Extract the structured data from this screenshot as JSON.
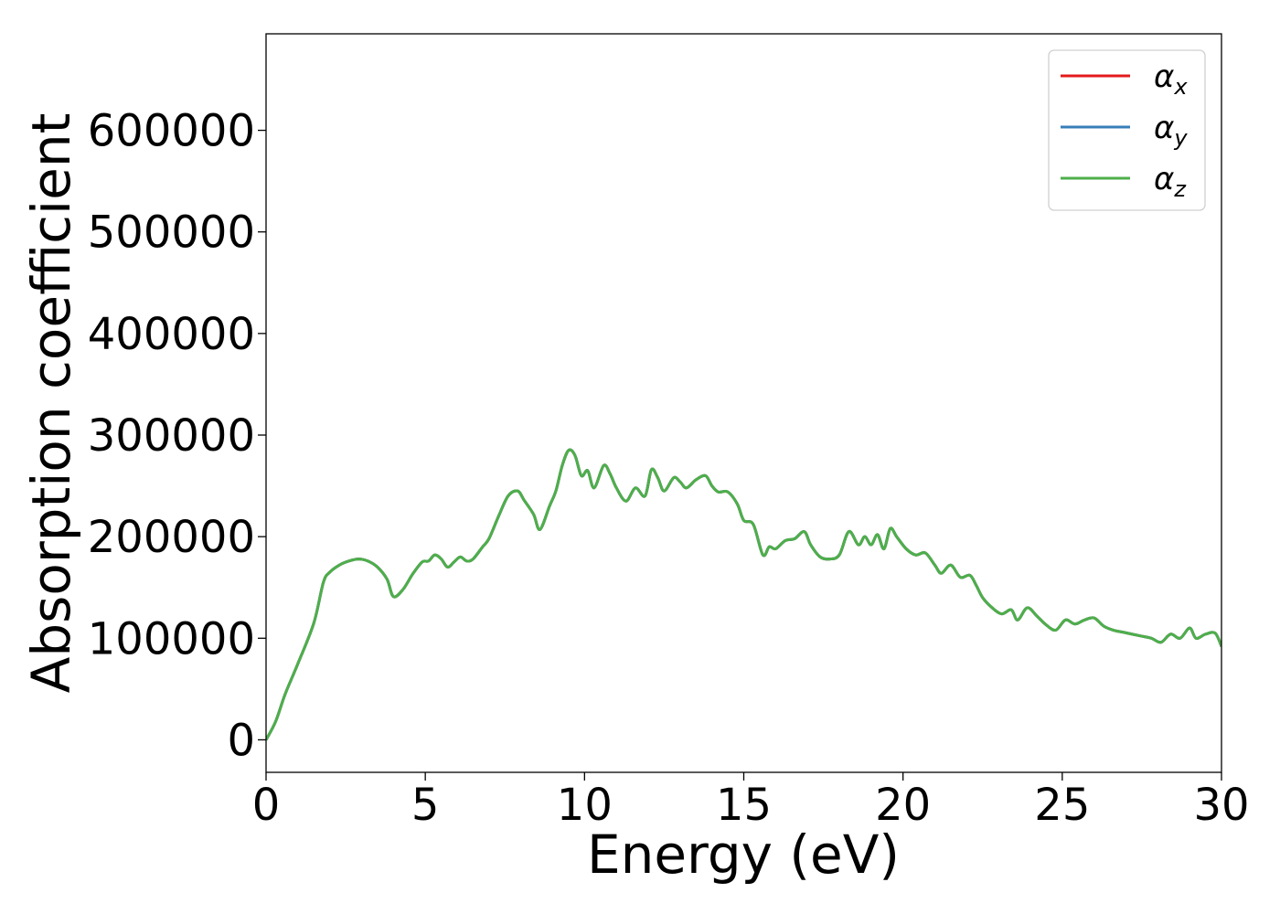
{
  "chart_data": {
    "type": "line",
    "xlabel": "Energy (eV)",
    "ylabel": "Absorption coefficient",
    "xlim": [
      0,
      30
    ],
    "ylim": [
      -32000,
      695000
    ],
    "xticks": [
      "0",
      "5",
      "10",
      "15",
      "20",
      "25",
      "30"
    ],
    "yticks": [
      "0",
      "100000",
      "200000",
      "300000",
      "400000",
      "500000",
      "600000"
    ],
    "grid": false,
    "legend_position": "top-right",
    "x": [
      0,
      0.3,
      0.6,
      1.0,
      1.5,
      1.8,
      2.0,
      2.3,
      2.6,
      2.9,
      3.2,
      3.5,
      3.8,
      4.0,
      4.3,
      4.6,
      4.9,
      5.1,
      5.3,
      5.5,
      5.7,
      5.9,
      6.1,
      6.3,
      6.5,
      6.8,
      7.0,
      7.3,
      7.6,
      7.9,
      8.1,
      8.4,
      8.6,
      8.9,
      9.1,
      9.3,
      9.5,
      9.7,
      9.9,
      10.1,
      10.3,
      10.6,
      10.8,
      11.0,
      11.3,
      11.6,
      11.9,
      12.1,
      12.3,
      12.5,
      12.8,
      13.0,
      13.2,
      13.5,
      13.8,
      14.0,
      14.2,
      14.5,
      14.8,
      15.0,
      15.3,
      15.6,
      15.8,
      16.0,
      16.3,
      16.6,
      16.9,
      17.1,
      17.4,
      17.7,
      18.0,
      18.3,
      18.6,
      18.8,
      19.0,
      19.2,
      19.4,
      19.6,
      19.8,
      20.1,
      20.4,
      20.7,
      21.0,
      21.2,
      21.5,
      21.8,
      22.1,
      22.3,
      22.5,
      22.8,
      23.1,
      23.4,
      23.6,
      23.9,
      24.2,
      24.5,
      24.8,
      25.1,
      25.4,
      25.7,
      26.0,
      26.3,
      26.6,
      26.9,
      27.2,
      27.5,
      27.8,
      28.1,
      28.4,
      28.7,
      29.0,
      29.2,
      29.5,
      29.8,
      30.0
    ],
    "series": [
      {
        "name": "α_x",
        "color": "#e41a1c",
        "values": [
          0,
          18000,
          45000,
          75000,
          115000,
          155000,
          165000,
          172000,
          176000,
          178000,
          176000,
          170000,
          158000,
          141000,
          148000,
          163000,
          175000,
          176000,
          182000,
          178000,
          170000,
          175000,
          180000,
          176000,
          178000,
          190000,
          198000,
          220000,
          240000,
          245000,
          236000,
          222000,
          207000,
          230000,
          245000,
          270000,
          285000,
          280000,
          260000,
          265000,
          248000,
          270000,
          262000,
          248000,
          235000,
          248000,
          240000,
          266000,
          258000,
          245000,
          258000,
          254000,
          248000,
          256000,
          260000,
          250000,
          244000,
          244000,
          232000,
          216000,
          212000,
          182000,
          190000,
          188000,
          196000,
          198000,
          205000,
          192000,
          180000,
          178000,
          182000,
          205000,
          192000,
          200000,
          192000,
          202000,
          188000,
          208000,
          200000,
          188000,
          182000,
          184000,
          172000,
          164000,
          172000,
          160000,
          162000,
          152000,
          140000,
          130000,
          124000,
          128000,
          118000,
          130000,
          122000,
          113000,
          108000,
          118000,
          114000,
          118000,
          120000,
          112000,
          108000,
          106000,
          104000,
          102000,
          100000,
          96000,
          104000,
          100000,
          110000,
          100000,
          104000,
          105000,
          92000
        ]
      },
      {
        "name": "α_y",
        "color": "#377eb8",
        "values": [
          0,
          18000,
          45000,
          75000,
          115000,
          155000,
          165000,
          172000,
          176000,
          178000,
          176000,
          170000,
          158000,
          141000,
          148000,
          163000,
          175000,
          176000,
          182000,
          178000,
          170000,
          175000,
          180000,
          176000,
          178000,
          190000,
          198000,
          220000,
          240000,
          245000,
          236000,
          222000,
          207000,
          230000,
          245000,
          270000,
          285000,
          280000,
          260000,
          265000,
          248000,
          270000,
          262000,
          248000,
          235000,
          248000,
          240000,
          266000,
          258000,
          245000,
          258000,
          254000,
          248000,
          256000,
          260000,
          250000,
          244000,
          244000,
          232000,
          216000,
          212000,
          182000,
          190000,
          188000,
          196000,
          198000,
          205000,
          192000,
          180000,
          178000,
          182000,
          205000,
          192000,
          200000,
          192000,
          202000,
          188000,
          208000,
          200000,
          188000,
          182000,
          184000,
          172000,
          164000,
          172000,
          160000,
          162000,
          152000,
          140000,
          130000,
          124000,
          128000,
          118000,
          130000,
          122000,
          113000,
          108000,
          118000,
          114000,
          118000,
          120000,
          112000,
          108000,
          106000,
          104000,
          102000,
          100000,
          96000,
          104000,
          100000,
          110000,
          100000,
          104000,
          105000,
          92000
        ]
      },
      {
        "name": "α_z",
        "color": "#4daf4a",
        "values": [
          0,
          18000,
          45000,
          75000,
          115000,
          155000,
          165000,
          172000,
          176000,
          178000,
          176000,
          170000,
          158000,
          141000,
          148000,
          163000,
          175000,
          176000,
          182000,
          178000,
          170000,
          175000,
          180000,
          176000,
          178000,
          190000,
          198000,
          220000,
          240000,
          245000,
          236000,
          222000,
          207000,
          230000,
          245000,
          270000,
          285000,
          280000,
          260000,
          265000,
          248000,
          270000,
          262000,
          248000,
          235000,
          248000,
          240000,
          266000,
          258000,
          245000,
          258000,
          254000,
          248000,
          256000,
          260000,
          250000,
          244000,
          244000,
          232000,
          216000,
          212000,
          182000,
          190000,
          188000,
          196000,
          198000,
          205000,
          192000,
          180000,
          178000,
          182000,
          205000,
          192000,
          200000,
          192000,
          202000,
          188000,
          208000,
          200000,
          188000,
          182000,
          184000,
          172000,
          164000,
          172000,
          160000,
          162000,
          152000,
          140000,
          130000,
          124000,
          128000,
          118000,
          130000,
          122000,
          113000,
          108000,
          118000,
          114000,
          118000,
          120000,
          112000,
          108000,
          106000,
          104000,
          102000,
          100000,
          96000,
          104000,
          100000,
          110000,
          100000,
          104000,
          105000,
          92000
        ]
      }
    ],
    "legend": [
      {
        "symbol": "α",
        "sub": "x"
      },
      {
        "symbol": "α",
        "sub": "y"
      },
      {
        "symbol": "α",
        "sub": "z"
      }
    ]
  }
}
